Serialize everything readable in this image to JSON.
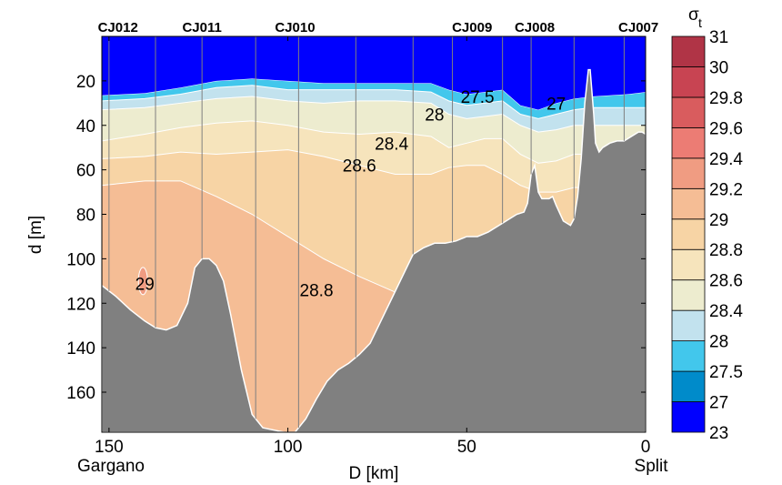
{
  "chart_data": {
    "type": "heatmap",
    "title": "",
    "xlabel": "D [km]",
    "ylabel": "d [m]",
    "xlim": [
      152,
      0
    ],
    "ylim": [
      0,
      178
    ],
    "x_ticks": [
      150,
      100,
      50,
      0
    ],
    "x_tick_labels": [
      "150",
      "100",
      "50",
      "0"
    ],
    "y_ticks": [
      20,
      40,
      60,
      80,
      100,
      120,
      140,
      160
    ],
    "y_tick_labels": [
      "20",
      "40",
      "60",
      "80",
      "100",
      "120",
      "140",
      "160"
    ],
    "x_end_labels": {
      "left": "Gargano",
      "right": "Split"
    },
    "stations": [
      {
        "name": "CJ012",
        "x": 147.5
      },
      {
        "name": "CJ011",
        "x": 124
      },
      {
        "name": "CJ010",
        "x": 98
      },
      {
        "name": "CJ009",
        "x": 48.5
      },
      {
        "name": "CJ008",
        "x": 31
      },
      {
        "name": "CJ007",
        "x": 2
      }
    ],
    "station_lines_km": [
      150,
      137,
      124,
      109,
      97,
      81,
      65,
      54,
      40,
      32,
      20,
      6
    ],
    "colorbar": {
      "title": "σt",
      "levels": [
        "23",
        "27",
        "27.5",
        "28",
        "28.4",
        "28.6",
        "28.8",
        "29",
        "29.2",
        "29.4",
        "29.6",
        "29.8",
        "30",
        "31"
      ],
      "colors": [
        "#0000ff",
        "#008bca",
        "#42c7ec",
        "#c2e2ee",
        "#edeccf",
        "#f6e4bc",
        "#f7d4a5",
        "#f5bd95",
        "#f09c82",
        "#ec7c74",
        "#d95c5e",
        "#c84452",
        "#b03446"
      ]
    },
    "contour_labels": [
      {
        "text": "27.5",
        "x": 47,
        "y": 27
      },
      {
        "text": "27",
        "x": 25,
        "y": 30
      },
      {
        "text": "28",
        "x": 59,
        "y": 35
      },
      {
        "text": "28.4",
        "x": 71,
        "y": 48
      },
      {
        "text": "28.6",
        "x": 80,
        "y": 58
      },
      {
        "text": "29",
        "x": 140,
        "y": 111
      },
      {
        "text": "28.8",
        "x": 92,
        "y": 114
      }
    ],
    "isopycnals": {
      "x": [
        152,
        140,
        130,
        120,
        110,
        100,
        90,
        80,
        70,
        60,
        55,
        50,
        45,
        40,
        35,
        30,
        25,
        20,
        15,
        10,
        5,
        0
      ],
      "d27": [
        26.5,
        25.5,
        23,
        20,
        19,
        20,
        21,
        21,
        21,
        21,
        24,
        26,
        25,
        24,
        31,
        33,
        30,
        28,
        27,
        26.5,
        26,
        25
      ],
      "d27_5": [
        29,
        28,
        26,
        23,
        22,
        24,
        24,
        24,
        24,
        25,
        29,
        31,
        30,
        29,
        35,
        37,
        35,
        33,
        32,
        32,
        32,
        32
      ],
      "d28": [
        33,
        32,
        30,
        28,
        27,
        29,
        30,
        29,
        29,
        30,
        35,
        37,
        36,
        35,
        40,
        43,
        42,
        40,
        40,
        40,
        40,
        40
      ],
      "d28_4": [
        47,
        44,
        41,
        39,
        38,
        40,
        43,
        44,
        43,
        45,
        50,
        48,
        46,
        46,
        53,
        57,
        56,
        53,
        53,
        53,
        53,
        53
      ],
      "d28_6": [
        55,
        54,
        52,
        53,
        52,
        51,
        54,
        58,
        62,
        62,
        59,
        58,
        58,
        62,
        67,
        70,
        70,
        68,
        68,
        68,
        68,
        68
      ],
      "d28_8": [
        67,
        65,
        65,
        72,
        80,
        90,
        100,
        108,
        115,
        118,
        124,
        130,
        135,
        140,
        145,
        150,
        150,
        150,
        150,
        150,
        150,
        150
      ]
    },
    "bathymetry": {
      "x": [
        152,
        148,
        144,
        140,
        137,
        134,
        131,
        128,
        126,
        124,
        122,
        120,
        118,
        116,
        113,
        110,
        107,
        104,
        101,
        98,
        95,
        92,
        89,
        86,
        83,
        80,
        77,
        74,
        71,
        68,
        65,
        62,
        59,
        56,
        53,
        50,
        47,
        44,
        41,
        38,
        36,
        34,
        33,
        32,
        31,
        30,
        29,
        28,
        27,
        26,
        25,
        23,
        21,
        20,
        19,
        18,
        17,
        16,
        15.5,
        15,
        14.5,
        14,
        13,
        12,
        10,
        8,
        6,
        4,
        2,
        1,
        0
      ],
      "d": [
        112,
        117,
        123,
        128,
        131,
        132,
        130,
        120,
        104,
        100,
        100,
        103,
        110,
        125,
        150,
        170,
        176,
        177,
        178,
        178,
        172,
        163,
        155,
        150,
        147,
        143,
        138,
        128,
        118,
        108,
        98,
        95,
        93,
        93,
        92,
        90,
        90,
        88,
        85,
        82,
        80,
        79,
        75,
        62,
        58,
        70,
        73,
        73,
        73,
        72,
        76,
        83,
        85,
        82,
        72,
        55,
        30,
        15,
        15,
        25,
        35,
        48,
        52,
        50,
        48,
        47,
        47,
        45,
        43,
        43,
        44
      ]
    }
  }
}
